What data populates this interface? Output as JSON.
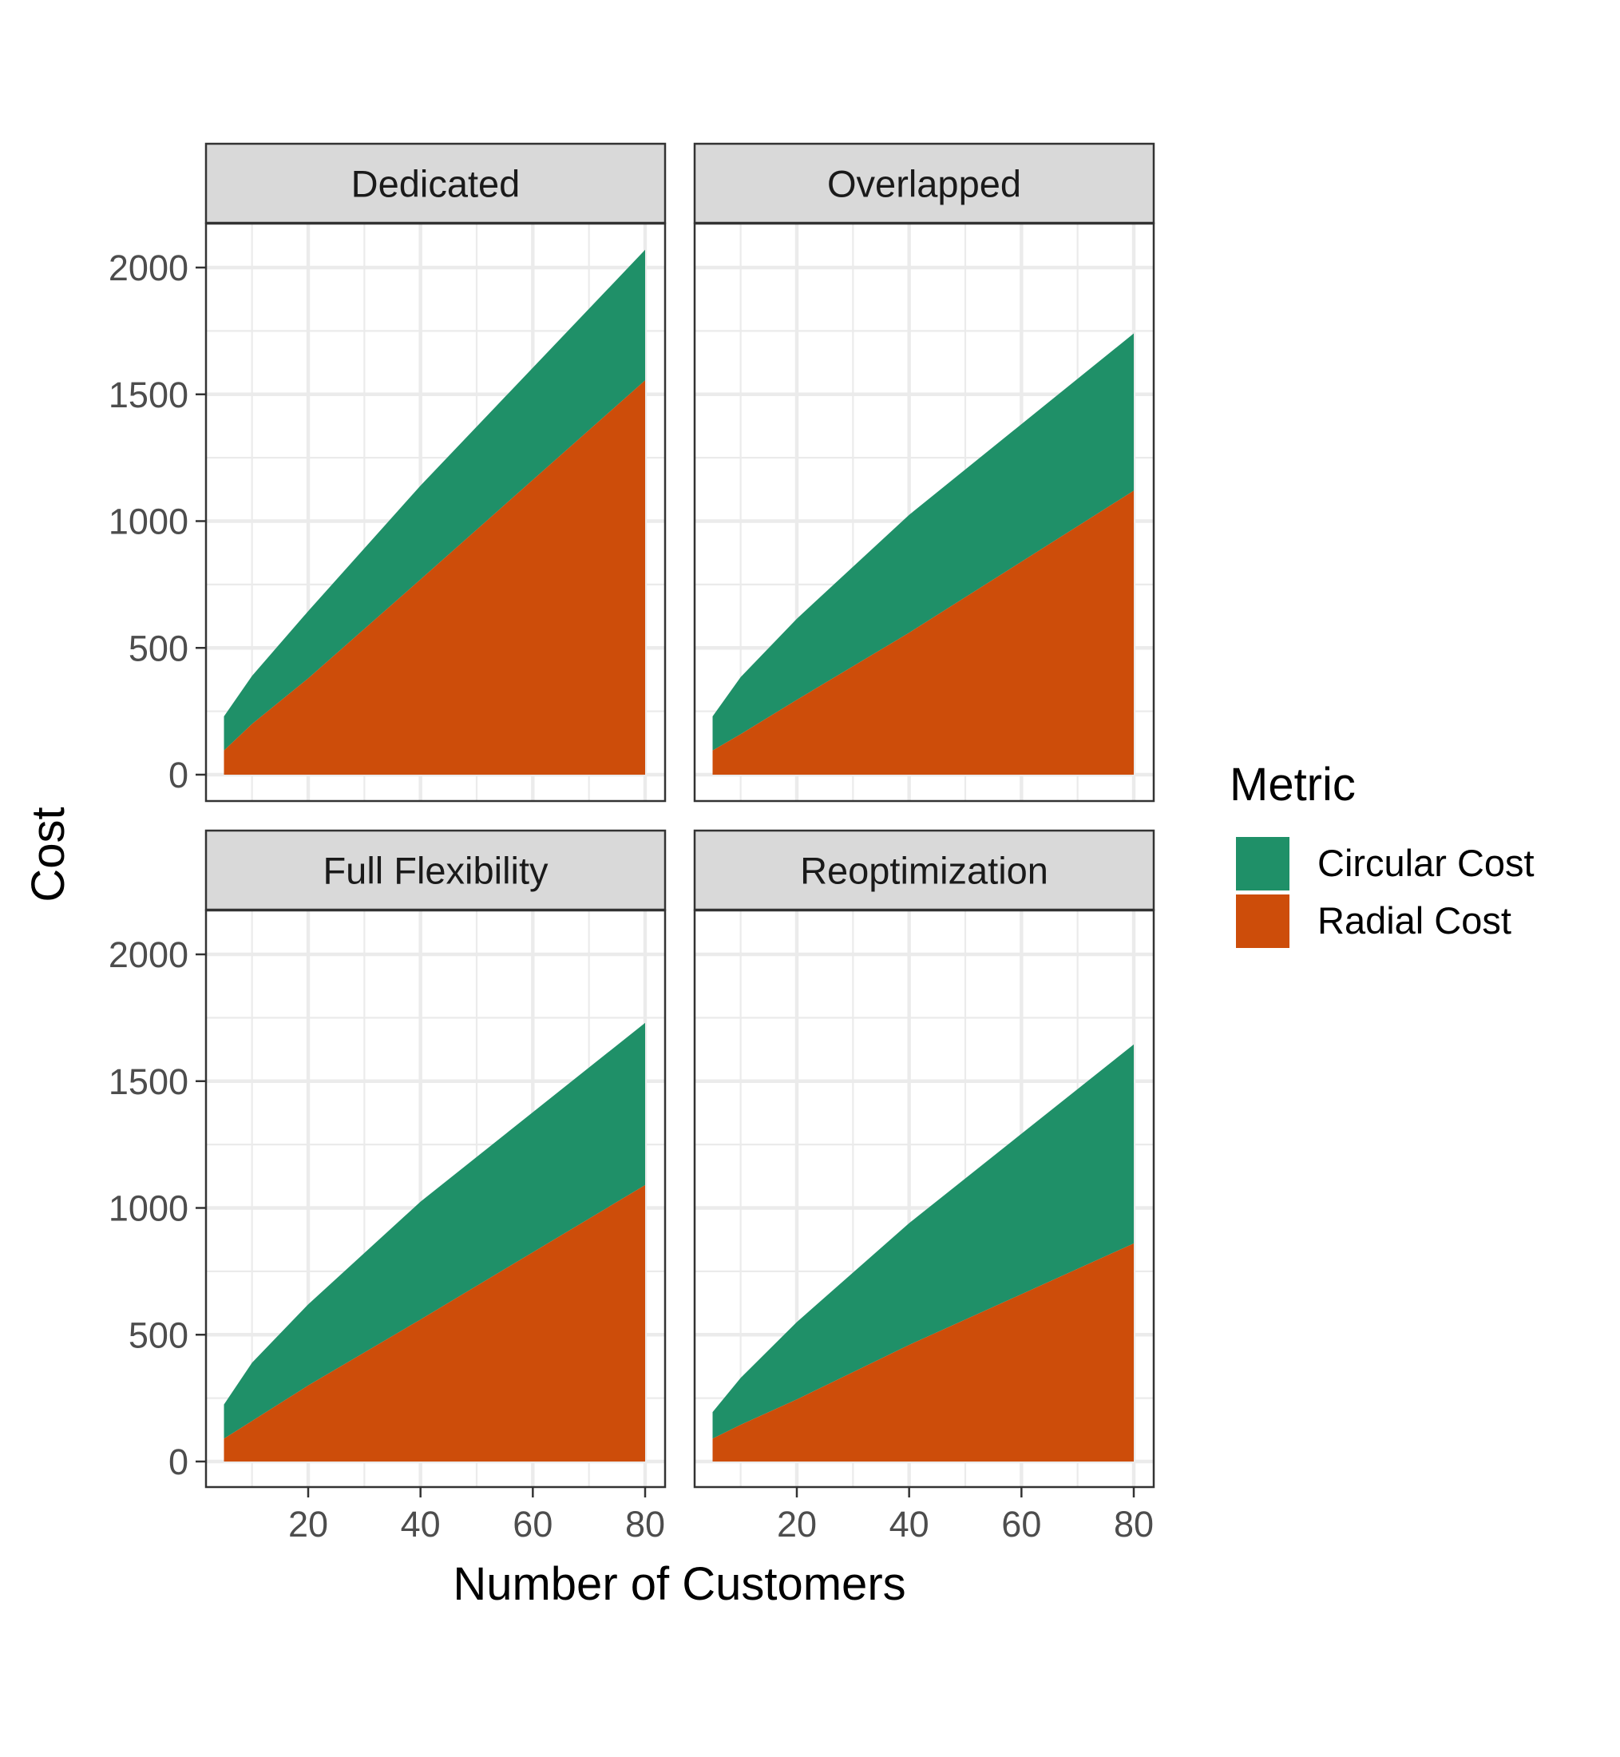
{
  "chart_data": {
    "type": "area",
    "stacked": true,
    "facet_labels": [
      "Dedicated",
      "Overlapped",
      "Full Flexibility",
      "Reoptimization"
    ],
    "xlabel": "Number of Customers",
    "ylabel": "Cost",
    "xlim": [
      5,
      80
    ],
    "ylim": [
      0,
      2000
    ],
    "x_ticks": [
      "20",
      "40",
      "60",
      "80"
    ],
    "y_ticks": [
      "0",
      "500",
      "1000",
      "1500",
      "2000"
    ],
    "grid": true,
    "legend": {
      "title": "Metric",
      "placement": "right",
      "entries": [
        {
          "name": "Circular Cost",
          "color": "#1F9068"
        },
        {
          "name": "Radial Cost",
          "color": "#CD4D0A"
        }
      ]
    },
    "x": [
      5,
      10,
      20,
      40,
      80
    ],
    "panels": [
      {
        "label": "Dedicated",
        "series": [
          {
            "name": "Radial Cost",
            "values": [
              95,
              200,
              380,
              770,
              1555
            ]
          },
          {
            "name": "Circular Cost",
            "values": [
              135,
              190,
              265,
              370,
              515
            ]
          }
        ]
      },
      {
        "label": "Overlapped",
        "series": [
          {
            "name": "Radial Cost",
            "values": [
              95,
              160,
              295,
              560,
              1120
            ]
          },
          {
            "name": "Circular Cost",
            "values": [
              135,
              225,
              320,
              465,
              620
            ]
          }
        ]
      },
      {
        "label": "Full Flexibility",
        "series": [
          {
            "name": "Radial Cost",
            "values": [
              90,
              160,
              300,
              560,
              1090
            ]
          },
          {
            "name": "Circular Cost",
            "values": [
              135,
              230,
              320,
              465,
              640
            ]
          }
        ]
      },
      {
        "label": "Reoptimization",
        "series": [
          {
            "name": "Radial Cost",
            "values": [
              90,
              145,
              245,
              460,
              860
            ]
          },
          {
            "name": "Circular Cost",
            "values": [
              105,
              185,
              305,
              480,
              785
            ]
          }
        ]
      }
    ]
  }
}
